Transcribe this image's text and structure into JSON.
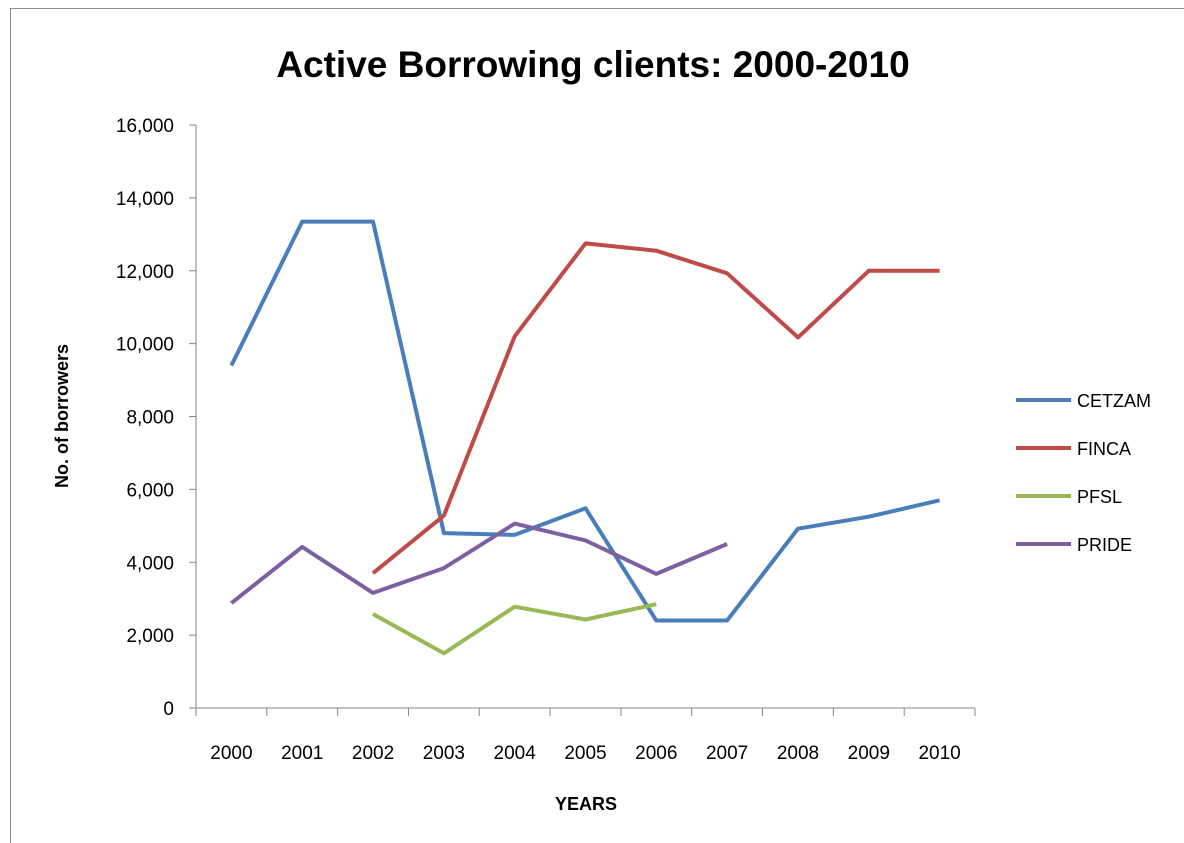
{
  "chart_data": {
    "type": "line",
    "title": "Active Borrowing clients: 2000-2010",
    "xlabel": "YEARS",
    "ylabel": "No. of borrowers",
    "categories": [
      "2000",
      "2001",
      "2002",
      "2003",
      "2004",
      "2005",
      "2006",
      "2007",
      "2008",
      "2009",
      "2010"
    ],
    "ylim": [
      0,
      16000
    ],
    "yticks": [
      0,
      2000,
      4000,
      6000,
      8000,
      10000,
      12000,
      14000,
      16000
    ],
    "ytick_labels": [
      "0",
      "2,000",
      "4,000",
      "6,000",
      "8,000",
      "10,000",
      "12,000",
      "14,000",
      "16,000"
    ],
    "grid": false,
    "legend_position": "right",
    "series": [
      {
        "name": "CETZAM",
        "color": "#4a7ebb",
        "values": [
          9400,
          13350,
          13350,
          4800,
          4750,
          5480,
          2400,
          2400,
          4920,
          5250,
          5700
        ]
      },
      {
        "name": "FINCA",
        "color": "#be4b48",
        "values": [
          null,
          null,
          3700,
          5280,
          10200,
          12750,
          12550,
          11930,
          10170,
          12000,
          12000
        ]
      },
      {
        "name": "PFSL",
        "color": "#98b954",
        "values": [
          null,
          null,
          2580,
          1500,
          2780,
          2430,
          2850,
          null,
          null,
          null,
          null
        ]
      },
      {
        "name": "PRIDE",
        "color": "#7d60a0",
        "values": [
          2880,
          4420,
          3160,
          3840,
          5060,
          4600,
          3680,
          4500,
          null,
          null,
          null
        ]
      }
    ]
  }
}
